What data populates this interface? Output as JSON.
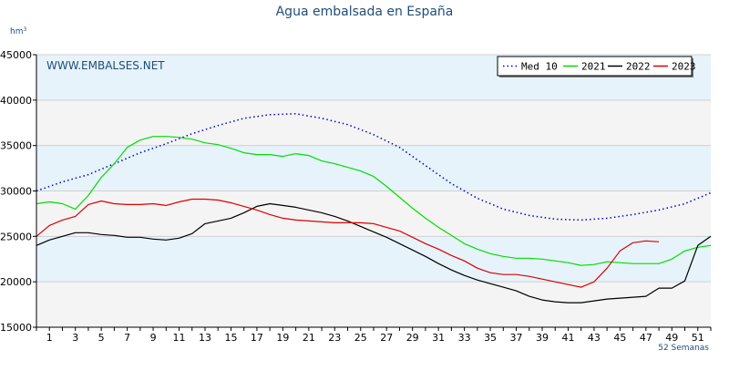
{
  "chart_data": {
    "type": "line",
    "title": "Agua embalsada en España",
    "ylabel": "hm",
    "ylabel_sup": "3",
    "xlabel": "52 Semanas",
    "watermark": "WWW.EMBALSES.NET",
    "xlim": [
      0,
      52
    ],
    "ylim": [
      15000,
      45000
    ],
    "yticks": [
      15000,
      20000,
      25000,
      30000,
      35000,
      40000,
      45000
    ],
    "xticks": [
      1,
      3,
      5,
      7,
      9,
      11,
      13,
      15,
      17,
      19,
      21,
      23,
      25,
      27,
      29,
      31,
      33,
      35,
      37,
      39,
      41,
      43,
      45,
      47,
      49,
      51
    ],
    "grid": true,
    "legend_position": "top-right",
    "colors": {
      "med10": "#0000cc",
      "y2021": "#00dd00",
      "y2022": "#000000",
      "y2023": "#dd0000",
      "band_light": "#e6f3fb",
      "band_alt": "#f4f4f4",
      "text": "#1f4e79"
    },
    "series": [
      {
        "name": "Med 10",
        "style": "dotted",
        "color": "#0000cc",
        "x": [
          0,
          2,
          4,
          6,
          8,
          10,
          12,
          14,
          16,
          18,
          20,
          22,
          24,
          26,
          28,
          30,
          32,
          34,
          36,
          38,
          40,
          42,
          44,
          46,
          48,
          50,
          52
        ],
        "y": [
          30000,
          31000,
          31800,
          33000,
          34200,
          35200,
          36300,
          37200,
          38000,
          38400,
          38500,
          38000,
          37300,
          36200,
          34800,
          32800,
          30800,
          29200,
          28000,
          27300,
          26900,
          26800,
          27000,
          27400,
          27900,
          28600,
          29800
        ]
      },
      {
        "name": "2021",
        "color": "#00dd00",
        "x": [
          0,
          1,
          2,
          3,
          4,
          5,
          6,
          7,
          8,
          9,
          10,
          11,
          12,
          13,
          14,
          15,
          16,
          17,
          18,
          19,
          20,
          21,
          22,
          23,
          24,
          25,
          26,
          27,
          28,
          29,
          30,
          31,
          32,
          33,
          34,
          35,
          36,
          37,
          38,
          39,
          40,
          41,
          42,
          43,
          44,
          45,
          46,
          47,
          48,
          49,
          50,
          51,
          52
        ],
        "y": [
          28600,
          28800,
          28600,
          28000,
          29500,
          31500,
          33000,
          34800,
          35600,
          36000,
          36000,
          35900,
          35700,
          35300,
          35100,
          34700,
          34200,
          34000,
          34000,
          33800,
          34100,
          33900,
          33300,
          33000,
          32600,
          32200,
          31600,
          30500,
          29300,
          28100,
          27000,
          26000,
          25100,
          24200,
          23600,
          23100,
          22800,
          22600,
          22600,
          22500,
          22300,
          22100,
          21800,
          21900,
          22200,
          22100,
          22000,
          22000,
          22000,
          22500,
          23400,
          23800,
          24000
        ]
      },
      {
        "name": "2022",
        "color": "#000000",
        "x": [
          0,
          1,
          2,
          3,
          4,
          5,
          6,
          7,
          8,
          9,
          10,
          11,
          12,
          13,
          14,
          15,
          16,
          17,
          18,
          19,
          20,
          21,
          22,
          23,
          24,
          25,
          26,
          27,
          28,
          29,
          30,
          31,
          32,
          33,
          34,
          35,
          36,
          37,
          38,
          39,
          40,
          41,
          42,
          43,
          44,
          45,
          46,
          47,
          48,
          49,
          50,
          51,
          52
        ],
        "y": [
          24000,
          24600,
          25000,
          25400,
          25400,
          25200,
          25100,
          24900,
          24900,
          24700,
          24600,
          24800,
          25300,
          26400,
          26700,
          27000,
          27600,
          28300,
          28600,
          28400,
          28200,
          27900,
          27600,
          27200,
          26700,
          26100,
          25500,
          24900,
          24200,
          23500,
          22800,
          22000,
          21300,
          20700,
          20200,
          19800,
          19400,
          19000,
          18400,
          18000,
          17800,
          17700,
          17700,
          17900,
          18100,
          18200,
          18300,
          18400,
          19300,
          19300,
          20100,
          24000,
          25000
        ]
      },
      {
        "name": "2023",
        "color": "#dd0000",
        "x": [
          0,
          1,
          2,
          3,
          4,
          5,
          6,
          7,
          8,
          9,
          10,
          11,
          12,
          13,
          14,
          15,
          16,
          17,
          18,
          19,
          20,
          21,
          22,
          23,
          24,
          25,
          26,
          27,
          28,
          29,
          30,
          31,
          32,
          33,
          34,
          35,
          36,
          37,
          38,
          39,
          40,
          41,
          42,
          43,
          44,
          45,
          46,
          47,
          48
        ],
        "y": [
          25000,
          26200,
          26800,
          27200,
          28500,
          28900,
          28600,
          28500,
          28500,
          28600,
          28400,
          28800,
          29100,
          29100,
          29000,
          28700,
          28300,
          27900,
          27400,
          27000,
          26800,
          26700,
          26600,
          26500,
          26500,
          26500,
          26400,
          26000,
          25600,
          24900,
          24200,
          23600,
          22900,
          22300,
          21500,
          21000,
          20800,
          20800,
          20600,
          20300,
          20000,
          19700,
          19400,
          20000,
          21500,
          23400,
          24300,
          24500,
          24400
        ]
      }
    ]
  }
}
